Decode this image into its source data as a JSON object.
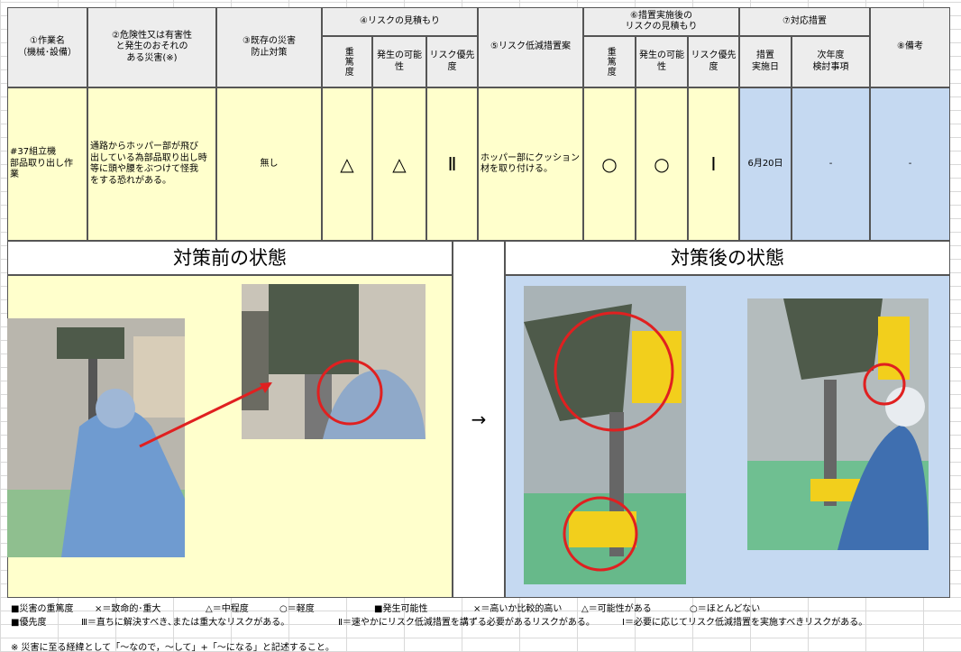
{
  "header": {
    "work_name": [
      "①作業名",
      "（機械･設備）"
    ],
    "hazard": [
      "②危険性又は有害性",
      "と発生のおそれの",
      "ある災害(※)"
    ],
    "existing_measures": [
      "③既存の災害",
      "防止対策"
    ],
    "risk_estimate": {
      "title": "④リスクの見積もり",
      "severity": "重篤度",
      "likelihood": "発生の可能性",
      "priority": "リスク優先度"
    },
    "reduction_plan": "⑤リスク低減措置案",
    "post_risk_estimate": {
      "title": [
        "⑥措置実施後の",
        "リスクの見積もり"
      ],
      "severity": "重篤度",
      "likelihood": "発生の可能性",
      "priority": "リスク優先度"
    },
    "response": {
      "title": "⑦対応措置",
      "date": [
        "措置",
        "実施日"
      ],
      "next_year": [
        "次年度",
        "検討事項"
      ]
    },
    "remarks": "⑧備考"
  },
  "row": {
    "work_name": [
      "#37組立機",
      "部品取り出し作",
      "業"
    ],
    "hazard": [
      "通路からホッパー部が飛び",
      "出している為部品取り出し時",
      "等に頭や腰をぶつけて怪我",
      "をする恐れがある。"
    ],
    "existing_measures": "無し",
    "severity": "△",
    "likelihood": "△",
    "priority": "Ⅱ",
    "reduction_plan": [
      "ホッパー部にクッション",
      "材を取り付ける。"
    ],
    "post_severity": "○",
    "post_likelihood": "○",
    "post_priority": "Ⅰ",
    "date": "6月20日",
    "next_year": "-",
    "remarks": "-"
  },
  "sections": {
    "before": "対策前の状態",
    "arrow": "→",
    "after": "対策後の状態"
  },
  "legend": {
    "severity": [
      "■災害の重篤度",
      "×＝致命的･重大",
      "△＝中程度",
      "○＝軽度"
    ],
    "likelihood": [
      "■発生可能性",
      "×＝高いか比較的高い",
      "△＝可能性がある",
      "○＝ほとんどない"
    ],
    "priority": [
      "■優先度",
      "Ⅲ＝直ちに解決すべき､または重大なリスクがある。",
      "Ⅱ＝速やかにリスク低減措置を講ずる必要があるリスクがある。",
      "Ⅰ＝必要に応じてリスク低減措置を実施すべきリスクがある。"
    ]
  },
  "note": "※ 災害に至る経緯として「～なので，～して」+「～になる」と記述すること。"
}
